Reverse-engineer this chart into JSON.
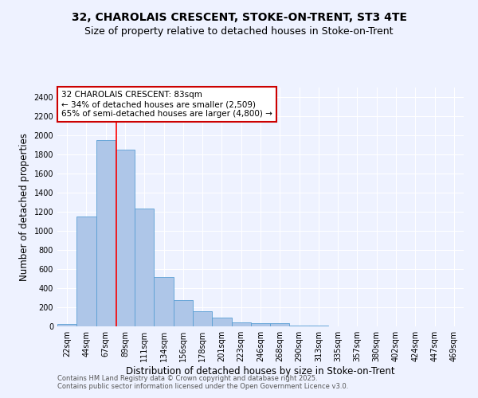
{
  "title": "32, CHAROLAIS CRESCENT, STOKE-ON-TRENT, ST3 4TE",
  "subtitle": "Size of property relative to detached houses in Stoke-on-Trent",
  "xlabel": "Distribution of detached houses by size in Stoke-on-Trent",
  "ylabel": "Number of detached properties",
  "categories": [
    "22sqm",
    "44sqm",
    "67sqm",
    "89sqm",
    "111sqm",
    "134sqm",
    "156sqm",
    "178sqm",
    "201sqm",
    "223sqm",
    "246sqm",
    "268sqm",
    "290sqm",
    "313sqm",
    "335sqm",
    "357sqm",
    "380sqm",
    "402sqm",
    "424sqm",
    "447sqm",
    "469sqm"
  ],
  "values": [
    25,
    1150,
    1950,
    1850,
    1230,
    520,
    275,
    155,
    90,
    45,
    35,
    30,
    12,
    6,
    4,
    3,
    3,
    2,
    2,
    2,
    0
  ],
  "bar_color": "#aec6e8",
  "bar_edge_color": "#5a9fd4",
  "red_line_x": 2.55,
  "annotation_text": "32 CHAROLAIS CRESCENT: 83sqm\n← 34% of detached houses are smaller (2,509)\n65% of semi-detached houses are larger (4,800) →",
  "annotation_box_color": "#ffffff",
  "annotation_box_edge_color": "#cc0000",
  "ylim": [
    0,
    2500
  ],
  "yticks": [
    0,
    200,
    400,
    600,
    800,
    1000,
    1200,
    1400,
    1600,
    1800,
    2000,
    2200,
    2400
  ],
  "bg_color": "#eef2ff",
  "grid_color": "#ffffff",
  "footnote1": "Contains HM Land Registry data © Crown copyright and database right 2025.",
  "footnote2": "Contains public sector information licensed under the Open Government Licence v3.0.",
  "title_fontsize": 10,
  "subtitle_fontsize": 9,
  "label_fontsize": 8.5,
  "tick_fontsize": 7,
  "annot_fontsize": 7.5
}
